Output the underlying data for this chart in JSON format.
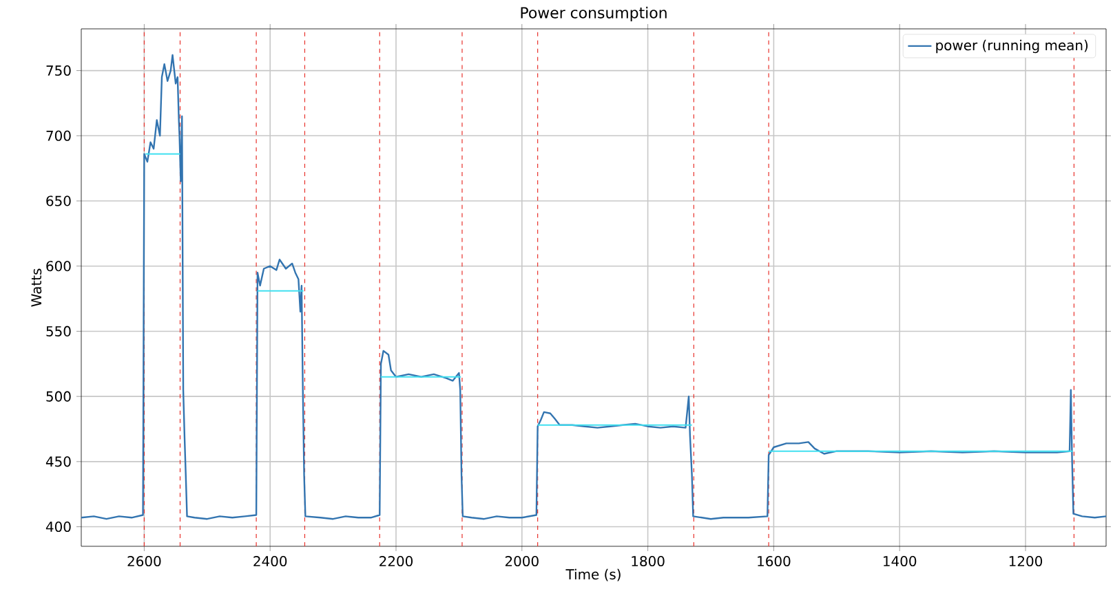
{
  "chart_data": {
    "type": "line",
    "title": "Power consumption",
    "xlabel": "Time (s)",
    "ylabel": "Watts",
    "xlim": [
      2700,
      1072
    ],
    "ylim": [
      385,
      782
    ],
    "xticks": [
      2600,
      2400,
      2200,
      2000,
      1800,
      1600,
      1400,
      1200
    ],
    "yticks": [
      400,
      450,
      500,
      550,
      600,
      650,
      700,
      750
    ],
    "grid": true,
    "legend": "top right",
    "marker": "none",
    "series": [
      {
        "name": "power (running mean)",
        "color": "#3274b0",
        "x": [
          2700,
          2680,
          2660,
          2640,
          2620,
          2602,
          2600,
          2595,
          2590,
          2585,
          2580,
          2575,
          2572,
          2568,
          2563,
          2558,
          2555,
          2550,
          2547,
          2545,
          2544,
          2542,
          2540,
          2538,
          2536,
          2534,
          2532,
          2520,
          2500,
          2480,
          2460,
          2440,
          2422,
          2420,
          2416,
          2410,
          2400,
          2390,
          2385,
          2375,
          2365,
          2360,
          2355,
          2352,
          2350,
          2348,
          2346,
          2344,
          2320,
          2300,
          2280,
          2260,
          2240,
          2226,
          2224,
          2220,
          2212,
          2208,
          2200,
          2180,
          2160,
          2140,
          2120,
          2110,
          2100,
          2098,
          2096,
          2094,
          2080,
          2060,
          2040,
          2020,
          2000,
          1977,
          1975,
          1970,
          1965,
          1955,
          1948,
          1940,
          1920,
          1900,
          1880,
          1860,
          1840,
          1820,
          1800,
          1780,
          1760,
          1740,
          1735,
          1733,
          1730,
          1728,
          1700,
          1680,
          1660,
          1640,
          1610,
          1608,
          1600,
          1580,
          1560,
          1545,
          1535,
          1520,
          1500,
          1450,
          1400,
          1350,
          1300,
          1250,
          1200,
          1150,
          1130,
          1128,
          1126,
          1124,
          1110,
          1090,
          1072
        ],
        "values": [
          407,
          408,
          406,
          408,
          407,
          409,
          686,
          680,
          695,
          690,
          712,
          700,
          745,
          755,
          742,
          750,
          762,
          740,
          745,
          712,
          700,
          665,
          715,
          505,
          470,
          440,
          408,
          407,
          406,
          408,
          407,
          408,
          409,
          595,
          585,
          598,
          600,
          597,
          605,
          598,
          602,
          595,
          590,
          565,
          585,
          505,
          440,
          408,
          407,
          406,
          408,
          407,
          407,
          409,
          525,
          535,
          532,
          520,
          515,
          517,
          515,
          517,
          514,
          512,
          518,
          505,
          440,
          408,
          407,
          406,
          408,
          407,
          407,
          409,
          477,
          482,
          488,
          487,
          483,
          478,
          478,
          477,
          476,
          477,
          478,
          479,
          477,
          476,
          477,
          476,
          500,
          470,
          440,
          408,
          406,
          407,
          407,
          407,
          408,
          455,
          461,
          464,
          464,
          465,
          460,
          456,
          458,
          458,
          457,
          458,
          457,
          458,
          457,
          457,
          458,
          505,
          450,
          410,
          408,
          407,
          408
        ]
      },
      {
        "type": "line",
        "color": "#40e0f0",
        "x": [
          2598,
          2543
        ],
        "values": [
          686,
          686
        ]
      },
      {
        "type": "line",
        "color": "#40e0f0",
        "x": [
          2420,
          2347
        ],
        "values": [
          581,
          581
        ]
      },
      {
        "type": "line",
        "color": "#40e0f0",
        "x": [
          2224,
          2097
        ],
        "values": [
          515,
          515
        ]
      },
      {
        "type": "line",
        "color": "#40e0f0",
        "x": [
          1975,
          1730
        ],
        "values": [
          478,
          478
        ]
      },
      {
        "type": "line",
        "color": "#40e0f0",
        "x": [
          1608,
          1125
        ],
        "values": [
          458,
          458
        ]
      }
    ],
    "ref_lines": [
      {
        "axis": "x",
        "value": 2600,
        "color": "#e8302a",
        "line_style": "dashed"
      },
      {
        "axis": "x",
        "value": 2543,
        "color": "#e8302a",
        "line_style": "dashed"
      },
      {
        "axis": "x",
        "value": 2422,
        "color": "#e8302a",
        "line_style": "dashed"
      },
      {
        "axis": "x",
        "value": 2345,
        "color": "#e8302a",
        "line_style": "dashed"
      },
      {
        "axis": "x",
        "value": 2226,
        "color": "#e8302a",
        "line_style": "dashed"
      },
      {
        "axis": "x",
        "value": 2095,
        "color": "#e8302a",
        "line_style": "dashed"
      },
      {
        "axis": "x",
        "value": 1975,
        "color": "#e8302a",
        "line_style": "dashed"
      },
      {
        "axis": "x",
        "value": 1727,
        "color": "#e8302a",
        "line_style": "dashed"
      },
      {
        "axis": "x",
        "value": 1608,
        "color": "#e8302a",
        "line_style": "dashed"
      },
      {
        "axis": "x",
        "value": 1123,
        "color": "#e8302a",
        "line_style": "dashed"
      }
    ]
  }
}
